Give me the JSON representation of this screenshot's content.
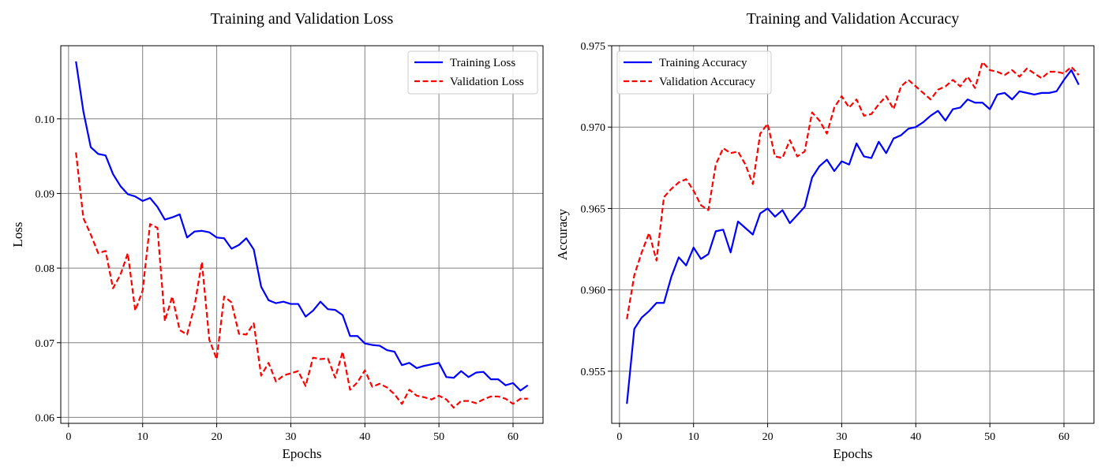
{
  "colors": {
    "train": "#0000ff",
    "val": "#ff0000",
    "grid": "#808080"
  },
  "chart_data": [
    {
      "type": "line",
      "title": "Training and Validation Loss",
      "xlabel": "Epochs",
      "ylabel": "Loss",
      "xlim": [
        -1.05,
        64.05
      ],
      "ylim": [
        0.0592,
        0.1098
      ],
      "xticks": [
        0,
        10,
        20,
        30,
        40,
        50,
        60
      ],
      "xtick_labels": [
        "0",
        "10",
        "20",
        "30",
        "40",
        "50",
        "60"
      ],
      "yticks": [
        0.06,
        0.07,
        0.08,
        0.09,
        0.1
      ],
      "ytick_labels": [
        "0.06",
        "0.07",
        "0.08",
        "0.09",
        "0.10"
      ],
      "grid": true,
      "legend_position": "top-right",
      "x": [
        1,
        2,
        3,
        4,
        5,
        6,
        7,
        8,
        9,
        10,
        11,
        12,
        13,
        14,
        15,
        16,
        17,
        18,
        19,
        20,
        21,
        22,
        23,
        24,
        25,
        26,
        27,
        28,
        29,
        30,
        31,
        32,
        33,
        34,
        35,
        36,
        37,
        38,
        39,
        40,
        41,
        42,
        43,
        44,
        45,
        46,
        47,
        48,
        49,
        50,
        51,
        52,
        53,
        54,
        55,
        56,
        57,
        58,
        59,
        60,
        61,
        62
      ],
      "series": [
        {
          "name": "Training Loss",
          "style": "solid",
          "color": "#0000ff",
          "values": [
            0.1077,
            0.101,
            0.0962,
            0.0953,
            0.0951,
            0.0926,
            0.091,
            0.0899,
            0.0896,
            0.089,
            0.0894,
            0.0882,
            0.0865,
            0.0868,
            0.0872,
            0.0841,
            0.0849,
            0.085,
            0.0848,
            0.0841,
            0.084,
            0.0826,
            0.0831,
            0.084,
            0.0825,
            0.0775,
            0.0757,
            0.0753,
            0.0755,
            0.0752,
            0.0752,
            0.0735,
            0.0743,
            0.0755,
            0.0745,
            0.0744,
            0.0737,
            0.0709,
            0.0709,
            0.0699,
            0.0697,
            0.0696,
            0.069,
            0.0688,
            0.067,
            0.0673,
            0.0666,
            0.0669,
            0.0671,
            0.0673,
            0.0654,
            0.0653,
            0.0662,
            0.0654,
            0.066,
            0.0661,
            0.0651,
            0.0651,
            0.0643,
            0.0646,
            0.0636,
            0.0643
          ]
        },
        {
          "name": "Validation Loss",
          "style": "dashed",
          "color": "#ff0000",
          "values": [
            0.0955,
            0.0867,
            0.0845,
            0.082,
            0.0823,
            0.0773,
            0.0791,
            0.082,
            0.0743,
            0.077,
            0.0859,
            0.0854,
            0.0729,
            0.0762,
            0.0717,
            0.0711,
            0.0749,
            0.0808,
            0.0704,
            0.0678,
            0.0762,
            0.0754,
            0.0712,
            0.0711,
            0.0726,
            0.0656,
            0.0673,
            0.0648,
            0.0656,
            0.0659,
            0.0662,
            0.0642,
            0.068,
            0.0678,
            0.0679,
            0.0653,
            0.0688,
            0.0637,
            0.0647,
            0.0663,
            0.0641,
            0.0645,
            0.064,
            0.0631,
            0.0618,
            0.0637,
            0.0629,
            0.0627,
            0.0624,
            0.0629,
            0.0624,
            0.0613,
            0.0622,
            0.0622,
            0.0619,
            0.0624,
            0.0628,
            0.0628,
            0.0625,
            0.0618,
            0.0625,
            0.0625
          ]
        }
      ]
    },
    {
      "type": "line",
      "title": "Training and Validation Accuracy",
      "xlabel": "Epochs",
      "ylabel": "Accuracy",
      "xlim": [
        -1.05,
        64.05
      ],
      "ylim": [
        0.9518,
        0.975
      ],
      "xticks": [
        0,
        10,
        20,
        30,
        40,
        50,
        60
      ],
      "xtick_labels": [
        "0",
        "10",
        "20",
        "30",
        "40",
        "50",
        "60"
      ],
      "yticks": [
        0.955,
        0.96,
        0.965,
        0.97,
        0.975
      ],
      "ytick_labels": [
        "0.955",
        "0.960",
        "0.965",
        "0.970",
        "0.975"
      ],
      "grid": true,
      "legend_position": "top-left",
      "x": [
        1,
        2,
        3,
        4,
        5,
        6,
        7,
        8,
        9,
        10,
        11,
        12,
        13,
        14,
        15,
        16,
        17,
        18,
        19,
        20,
        21,
        22,
        23,
        24,
        25,
        26,
        27,
        28,
        29,
        30,
        31,
        32,
        33,
        34,
        35,
        36,
        37,
        38,
        39,
        40,
        41,
        42,
        43,
        44,
        45,
        46,
        47,
        48,
        49,
        50,
        51,
        52,
        53,
        54,
        55,
        56,
        57,
        58,
        59,
        60,
        61,
        62
      ],
      "series": [
        {
          "name": "Training Accuracy",
          "style": "solid",
          "color": "#0000ff",
          "values": [
            0.953,
            0.9576,
            0.9583,
            0.9587,
            0.9592,
            0.9592,
            0.9608,
            0.962,
            0.9615,
            0.9626,
            0.9619,
            0.9622,
            0.9636,
            0.9637,
            0.9623,
            0.9642,
            0.9638,
            0.9634,
            0.9647,
            0.965,
            0.9645,
            0.9649,
            0.9641,
            0.9646,
            0.9651,
            0.9669,
            0.9676,
            0.968,
            0.9673,
            0.9679,
            0.9677,
            0.969,
            0.9682,
            0.9681,
            0.9691,
            0.9684,
            0.9693,
            0.9695,
            0.9699,
            0.97,
            0.9703,
            0.9707,
            0.971,
            0.9704,
            0.9711,
            0.9712,
            0.9717,
            0.9715,
            0.9715,
            0.9711,
            0.972,
            0.9721,
            0.9717,
            0.9722,
            0.9721,
            0.972,
            0.9721,
            0.9721,
            0.9722,
            0.9729,
            0.9735,
            0.9726
          ]
        },
        {
          "name": "Validation Accuracy",
          "style": "dashed",
          "color": "#ff0000",
          "values": [
            0.9582,
            0.9609,
            0.9623,
            0.9635,
            0.9618,
            0.9657,
            0.9662,
            0.9666,
            0.9668,
            0.9661,
            0.9652,
            0.9649,
            0.9677,
            0.9687,
            0.9684,
            0.9685,
            0.9677,
            0.9665,
            0.9696,
            0.9702,
            0.9682,
            0.9681,
            0.9692,
            0.9682,
            0.9685,
            0.9709,
            0.9704,
            0.9696,
            0.9712,
            0.9719,
            0.9712,
            0.9717,
            0.9707,
            0.9708,
            0.9714,
            0.9719,
            0.9711,
            0.9725,
            0.9729,
            0.9725,
            0.9721,
            0.9717,
            0.9723,
            0.9725,
            0.9729,
            0.9725,
            0.9731,
            0.9724,
            0.974,
            0.9735,
            0.9734,
            0.9732,
            0.9735,
            0.9731,
            0.9736,
            0.9733,
            0.973,
            0.9734,
            0.9734,
            0.9733,
            0.9737,
            0.9732
          ]
        }
      ]
    }
  ]
}
